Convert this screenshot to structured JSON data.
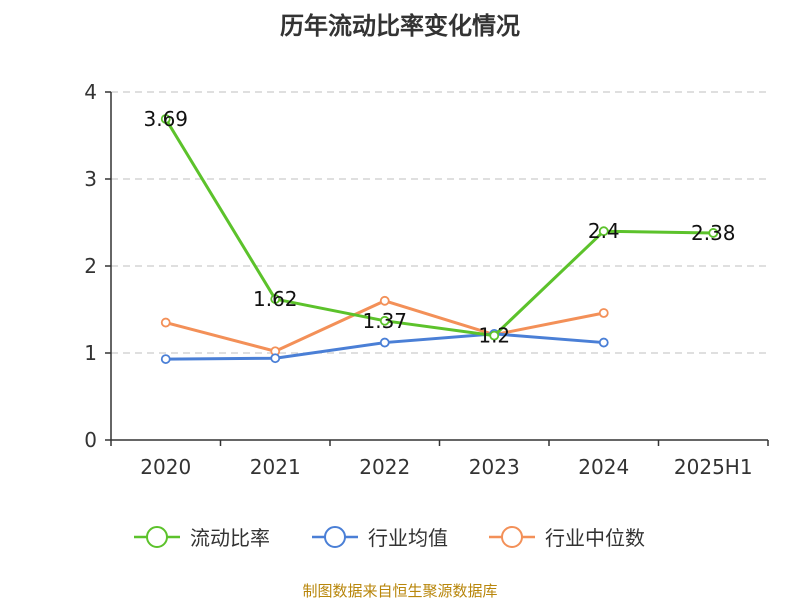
{
  "chart_data": {
    "type": "line",
    "title": "历年流动比率变化情况",
    "categories": [
      "2020",
      "2021",
      "2022",
      "2023",
      "2024",
      "2025H1"
    ],
    "yticks": [
      "0",
      "1",
      "2",
      "3",
      "4"
    ],
    "ylim": [
      0,
      4
    ],
    "grid": true,
    "legend_position": "bottom",
    "series": [
      {
        "name": "流动比率",
        "color": "#5cc22b",
        "values": [
          3.69,
          1.62,
          1.37,
          1.2,
          2.4,
          2.38
        ],
        "labels": [
          "3.69",
          "1.62",
          "1.37",
          "1.2",
          "2.4",
          "2.38"
        ]
      },
      {
        "name": "行业均值",
        "color": "#4a7fd6",
        "values": [
          0.93,
          0.94,
          1.12,
          1.22,
          1.12,
          null
        ],
        "labels": []
      },
      {
        "name": "行业中位数",
        "color": "#f39058",
        "values": [
          1.35,
          1.02,
          1.6,
          1.21,
          1.46,
          null
        ],
        "labels": []
      }
    ]
  },
  "footer": {
    "source": "制图数据来自恒生聚源数据库"
  }
}
